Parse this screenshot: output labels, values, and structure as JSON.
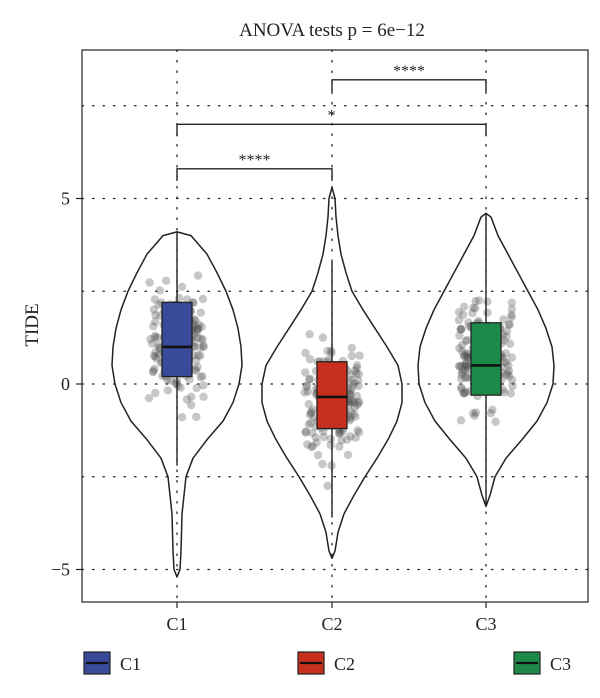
{
  "chart_data": {
    "type": "violin",
    "title": "ANOVA tests p = 6e−12",
    "ylabel": "TIDE",
    "xlabel": "",
    "categories": [
      "C1",
      "C2",
      "C3"
    ],
    "ylim": [
      -5.5,
      8.5
    ],
    "yticks": [
      -5,
      0,
      5
    ],
    "grid": true,
    "legend_position": "bottom",
    "series": [
      {
        "name": "C1",
        "color": "#3a4a9a",
        "median": 1.0,
        "q1": 0.2,
        "q3": 2.2,
        "whisker_low": -2.2,
        "whisker_high": 4.1,
        "min": -5.2,
        "max": 4.1
      },
      {
        "name": "C2",
        "color": "#c8301e",
        "median": -0.35,
        "q1": -1.2,
        "q3": 0.6,
        "whisker_low": -3.6,
        "whisker_high": 3.3,
        "min": -4.7,
        "max": 5.3
      },
      {
        "name": "C3",
        "color": "#1e8a4a",
        "median": 0.5,
        "q1": -0.3,
        "q3": 1.65,
        "whisker_low": -3.3,
        "whisker_high": 4.6,
        "min": -3.3,
        "max": 4.6
      }
    ],
    "comparisons": [
      {
        "from": "C1",
        "to": "C2",
        "y": 5.8,
        "label": "****"
      },
      {
        "from": "C1",
        "to": "C3",
        "y": 7.0,
        "label": "*"
      },
      {
        "from": "C2",
        "to": "C3",
        "y": 8.2,
        "label": "****"
      }
    ]
  }
}
